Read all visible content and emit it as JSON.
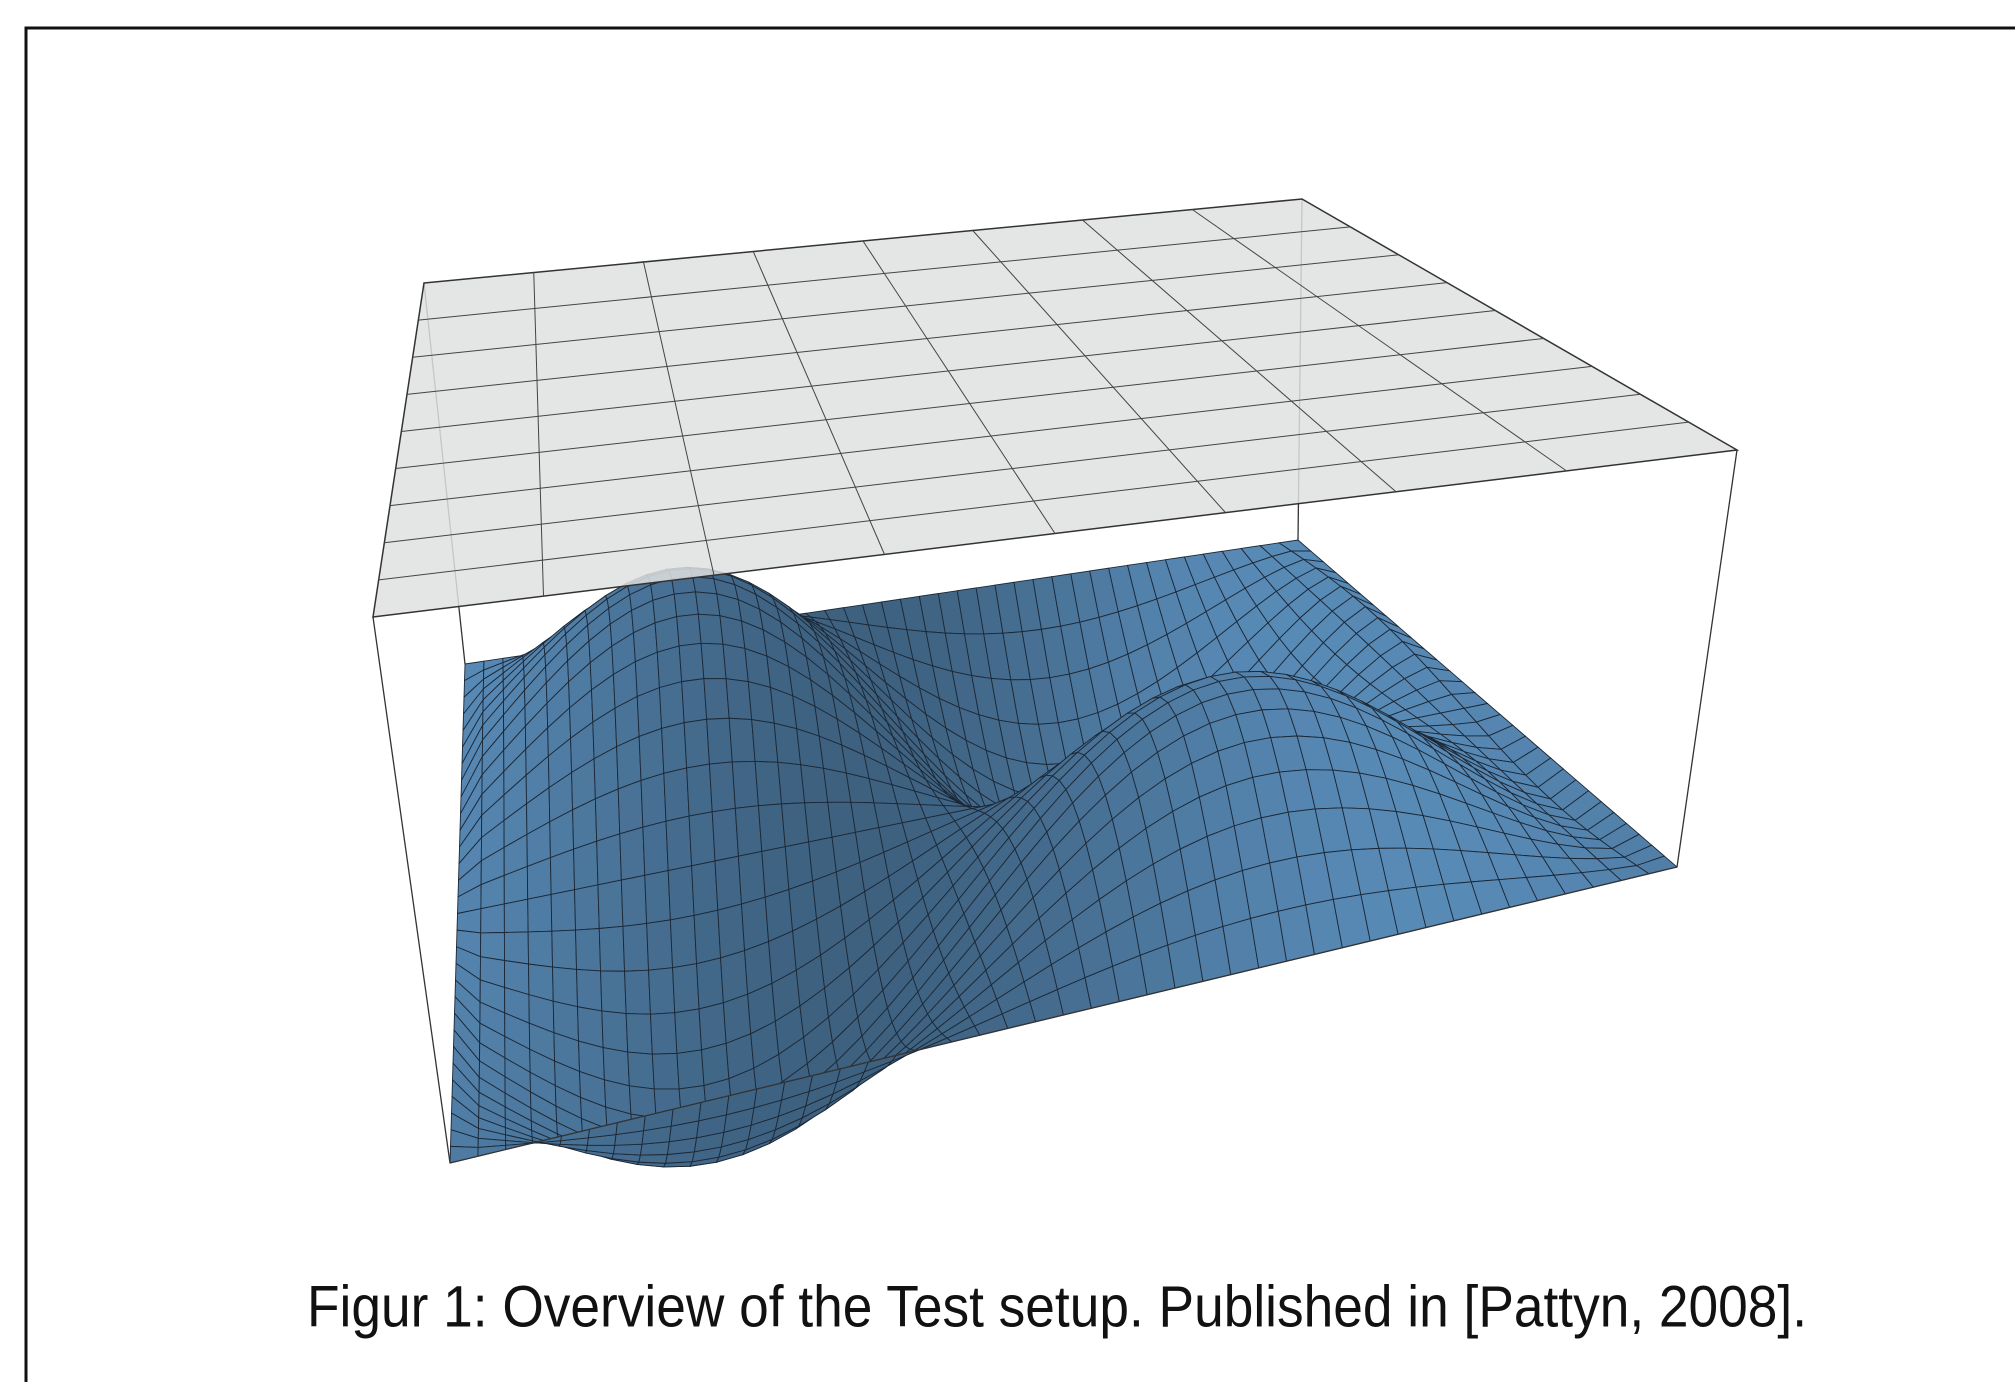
{
  "figure": {
    "caption": "Figur 1: Overview of the Test setup. Published in [Pattyn, 2008]."
  }
}
